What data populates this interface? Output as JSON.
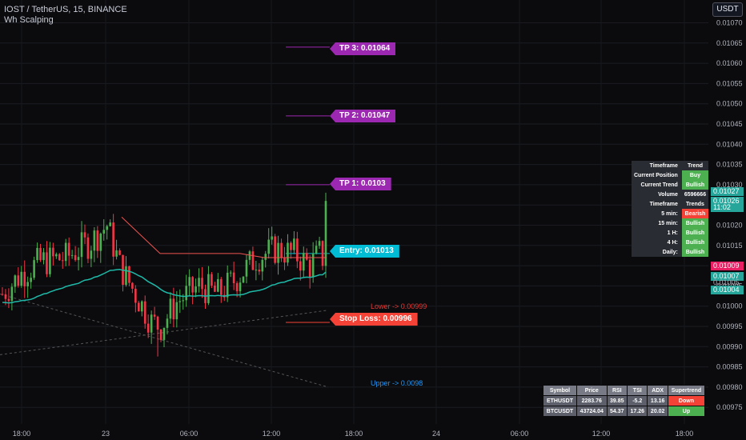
{
  "header": {
    "title": "IOST / TetherUS, 15, BINANCE",
    "indicator": "Wh Scalping",
    "currency_button": "USDT"
  },
  "colors": {
    "bull": "#26a69a",
    "bear": "#ef5350",
    "green_candle": "#4caf50",
    "red_candle": "#f23645",
    "tp": "#9c27b0",
    "entry": "#00bcd4",
    "stop": "#f44336",
    "ema": "#1fb9a8",
    "bg": "#0b0b0e"
  },
  "chart_data": {
    "type": "candlestick",
    "ylim": [
      0.00969,
      0.01074
    ],
    "y_ticks": [
      "0.01070",
      "0.01065",
      "0.01060",
      "0.01055",
      "0.01050",
      "0.01045",
      "0.01040",
      "0.01035",
      "0.01030",
      "0.01025",
      "0.01020",
      "0.01015",
      "0.01010",
      "0.01005",
      "0.01000",
      "0.00995",
      "0.00990",
      "0.00985",
      "0.00980",
      "0.00975"
    ],
    "x_ticks": [
      "18:00",
      "23",
      "06:00",
      "12:00",
      "18:00",
      "24",
      "06:00",
      "12:00",
      "18:00"
    ],
    "last_price": 0.01026,
    "last_close_time": "11:02",
    "price_badges": [
      {
        "text": "0.01027",
        "color": "#26a69a"
      },
      {
        "text": "0.01026",
        "color": "#26a69a"
      },
      {
        "text": "11:02",
        "color": "#26a69a"
      },
      {
        "text": "0.01009",
        "color": "#e91e63"
      },
      {
        "text": "0.01007",
        "color": "#26a69a"
      },
      {
        "text": "0.01005",
        "color": "#b0b3bd"
      },
      {
        "text": "0.01004",
        "color": "#26a69a"
      }
    ],
    "levels": {
      "tp3": {
        "label": "TP 3: 0.01064",
        "value": 0.01064
      },
      "tp2": {
        "label": "TP 2: 0.01047",
        "value": 0.01047
      },
      "tp1": {
        "label": "TP 1: 0.0103",
        "value": 0.0103
      },
      "entry": {
        "label": "Entry: 0.01013",
        "value": 0.01013
      },
      "stop": {
        "label": "Stop Loss: 0.00996",
        "value": 0.00996
      }
    },
    "channel_labels": {
      "lower": "Lower -> 0.00999",
      "upper": "Upper -> 0.0098"
    }
  },
  "trend_table": [
    [
      "Timeframe",
      "Trend",
      ""
    ],
    [
      "Current Position",
      "Buy",
      "#4caf50"
    ],
    [
      "Current Trend",
      "Bullish",
      "#4caf50"
    ],
    [
      "Volume",
      "6596666",
      ""
    ],
    [
      "Timeframe",
      "Trends",
      ""
    ],
    [
      "5 min:",
      "Bearish",
      "#f44336"
    ],
    [
      "15 min:",
      "Bullish",
      "#4caf50"
    ],
    [
      "1 H:",
      "Bullish",
      "#4caf50"
    ],
    [
      "4 H:",
      "Bullish",
      "#4caf50"
    ],
    [
      "Daily:",
      "Bullish",
      "#4caf50"
    ]
  ],
  "symbol_table": {
    "headers": [
      "Symbol",
      "Price",
      "RSI",
      "TSI",
      "ADX",
      "Supertrend"
    ],
    "rows": [
      {
        "cells": [
          "ETHUSDT",
          "2283.76",
          "39.85",
          "-5.2",
          "13.16",
          "Down"
        ],
        "trend_color": "#f44336"
      },
      {
        "cells": [
          "BTCUSDT",
          "43724.04",
          "54.37",
          "17.26",
          "20.02",
          "Up"
        ],
        "trend_color": "#4caf50"
      }
    ]
  }
}
